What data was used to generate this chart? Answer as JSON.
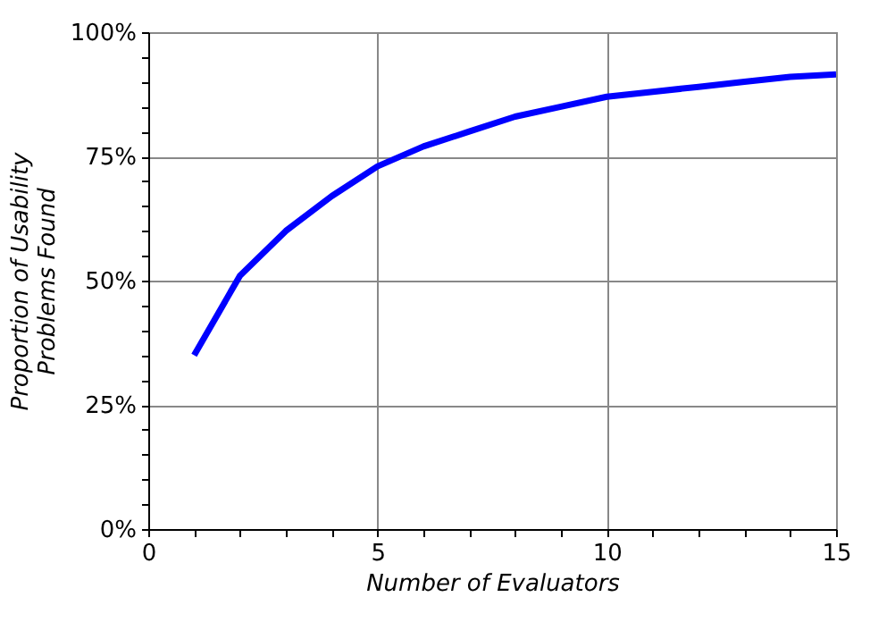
{
  "chart_data": {
    "type": "line",
    "xlabel": "Number of Evaluators",
    "ylabel": "Proportion of Usability Problems Found",
    "x": [
      1,
      2,
      3,
      4,
      5,
      6,
      7,
      8,
      9,
      10,
      11,
      12,
      13,
      14,
      15
    ],
    "series": [
      {
        "color": "#0000ff",
        "values": [
          35,
          51,
          60,
          67,
          73,
          77,
          80,
          83,
          85,
          87,
          88,
          89,
          90,
          91,
          91.5
        ]
      }
    ],
    "xlim": [
      0,
      15
    ],
    "ylim": [
      0,
      100
    ],
    "xticks": [
      0,
      {
        "value": 1,
        "label": null
      },
      {
        "value": 2,
        "label": null
      },
      {
        "value": 3,
        "label": null
      },
      {
        "value": 4,
        "label": null
      },
      5,
      {
        "value": 6,
        "label": null
      },
      {
        "value": 7,
        "label": null
      },
      {
        "value": 8,
        "label": null
      },
      {
        "value": 9,
        "label": null
      },
      10,
      {
        "value": 11,
        "label": null
      },
      {
        "value": 12,
        "label": null
      },
      {
        "value": 13,
        "label": null
      },
      {
        "value": 14,
        "label": null
      },
      15
    ],
    "yticks": [
      {
        "value": 0,
        "label": "0%"
      },
      {
        "value": 5,
        "label": null
      },
      {
        "value": 10,
        "label": null
      },
      {
        "value": 15,
        "label": null
      },
      {
        "value": 20,
        "label": null
      },
      {
        "value": 25,
        "label": "25%"
      },
      {
        "value": 30,
        "label": null
      },
      {
        "value": 35,
        "label": null
      },
      {
        "value": 40,
        "label": null
      },
      {
        "value": 45,
        "label": null
      },
      {
        "value": 50,
        "label": "50%"
      },
      {
        "value": 55,
        "label": null
      },
      {
        "value": 60,
        "label": null
      },
      {
        "value": 65,
        "label": null
      },
      {
        "value": 70,
        "label": null
      },
      {
        "value": 75,
        "label": "75%"
      },
      {
        "value": 80,
        "label": null
      },
      {
        "value": 85,
        "label": null
      },
      {
        "value": 90,
        "label": null
      },
      {
        "value": 95,
        "label": null
      },
      {
        "value": 100,
        "label": "100%"
      }
    ],
    "grid": true,
    "marker": "none",
    "line_style": "solid"
  }
}
